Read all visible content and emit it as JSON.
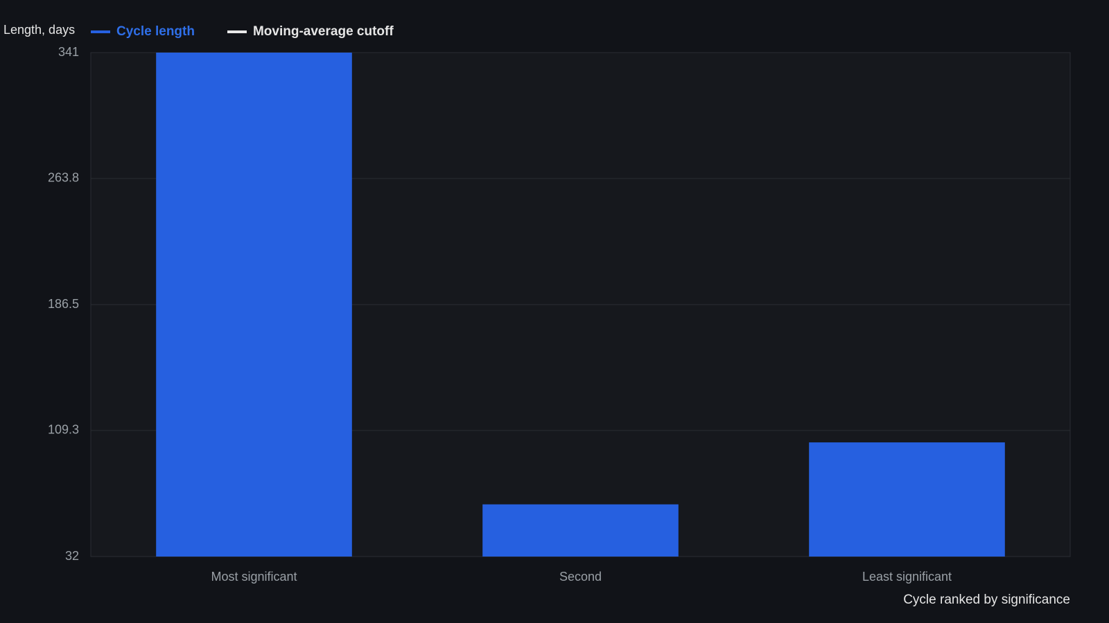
{
  "chart_data": {
    "type": "bar",
    "y_axis_label": "Length, days",
    "x_axis_label": "Cycle ranked by significance",
    "categories": [
      "Most significant",
      "Second",
      "Least significant"
    ],
    "series": [
      {
        "name": "Cycle length",
        "color": "#2660e0",
        "values": [
          341,
          64,
          102
        ]
      },
      {
        "name": "Moving-average cutoff",
        "color": "#e8e8e8",
        "type": "line",
        "values": [
          null,
          null,
          null
        ]
      }
    ],
    "ylim": [
      32,
      341
    ],
    "yticks": [
      32,
      109.3,
      186.5,
      263.8,
      341
    ],
    "grid": true
  }
}
